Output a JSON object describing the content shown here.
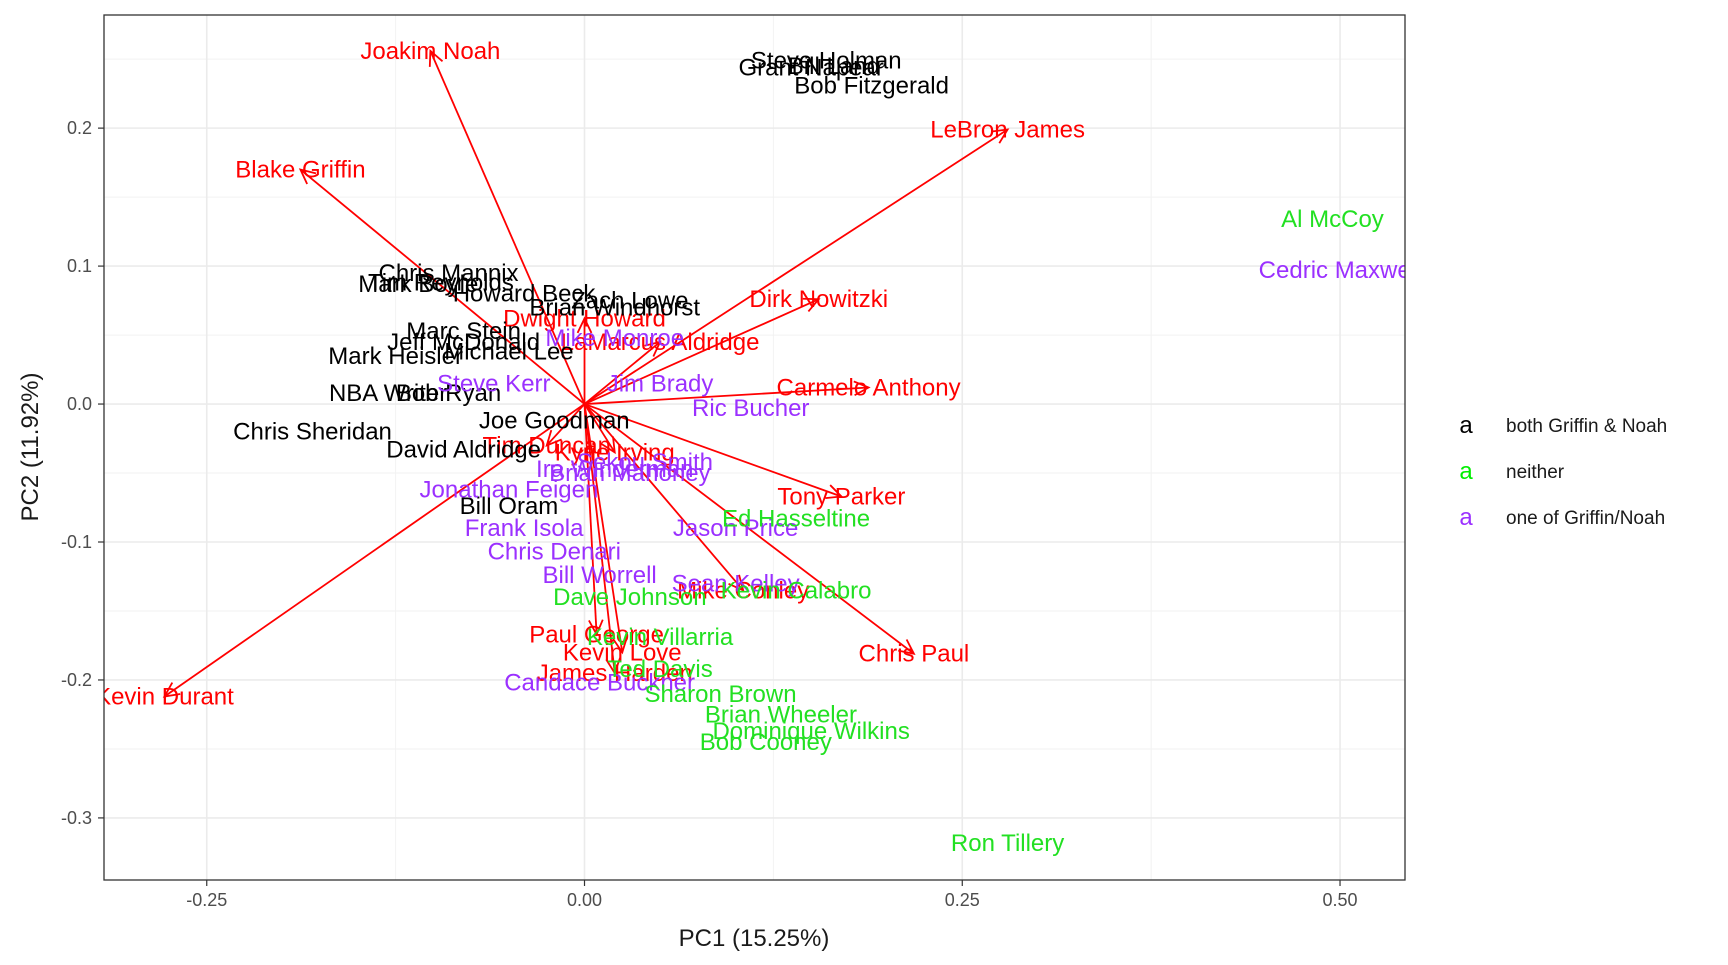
{
  "chart_data": {
    "type": "scatter",
    "subtype": "pca-biplot",
    "title": "",
    "xlabel": "PC1 (15.25%)",
    "ylabel": "PC2 (11.92%)",
    "xlim": [
      -0.318,
      0.543
    ],
    "ylim": [
      -0.345,
      0.282
    ],
    "x_ticks": [
      {
        "value": -0.25,
        "label": "-0.25"
      },
      {
        "value": 0.0,
        "label": "0.00"
      },
      {
        "value": 0.25,
        "label": "0.25"
      },
      {
        "value": 0.5,
        "label": "0.50"
      }
    ],
    "y_ticks": [
      {
        "value": -0.3,
        "label": "-0.3"
      },
      {
        "value": -0.2,
        "label": "-0.2"
      },
      {
        "value": -0.1,
        "label": "-0.1"
      },
      {
        "value": 0.0,
        "label": "0.0"
      },
      {
        "value": 0.1,
        "label": "0.1"
      },
      {
        "value": 0.2,
        "label": "0.2"
      }
    ],
    "grid": true,
    "legend": {
      "position": "right",
      "key_glyph": "a",
      "entries": [
        {
          "label": "both Griffin & Noah",
          "color": "#000000"
        },
        {
          "label": "neither",
          "color": "#00ee00"
        },
        {
          "label": "one of Griffin/Noah",
          "color": "#9b30ff"
        }
      ]
    },
    "colors": {
      "both": "#000000",
      "neither": "#22e022",
      "one": "#9b30ff",
      "arrow": "#ff0000"
    },
    "points": [
      {
        "label": "Steve Holman",
        "x": 0.16,
        "y": 0.249,
        "group": "both"
      },
      {
        "label": "Grant Napear",
        "x": 0.15,
        "y": 0.244,
        "group": "both"
      },
      {
        "label": "Bill Land",
        "x": 0.165,
        "y": 0.245,
        "group": "both"
      },
      {
        "label": "Bob Fitzgerald",
        "x": 0.19,
        "y": 0.231,
        "group": "both"
      },
      {
        "label": "Chris Mannix",
        "x": -0.09,
        "y": 0.095,
        "group": "both"
      },
      {
        "label": "Mark Boyle",
        "x": -0.11,
        "y": 0.087,
        "group": "both"
      },
      {
        "label": "Tim Reynolds",
        "x": -0.095,
        "y": 0.088,
        "group": "both"
      },
      {
        "label": "Howard Beck",
        "x": -0.04,
        "y": 0.08,
        "group": "both"
      },
      {
        "label": "Brian Windhorst",
        "x": 0.02,
        "y": 0.07,
        "group": "both"
      },
      {
        "label": "Zach Lowe",
        "x": 0.03,
        "y": 0.075,
        "group": "both"
      },
      {
        "label": "Marc Stein",
        "x": -0.08,
        "y": 0.053,
        "group": "both"
      },
      {
        "label": "Mark Heisler",
        "x": -0.125,
        "y": 0.035,
        "group": "both"
      },
      {
        "label": "Jeff McDonald",
        "x": -0.08,
        "y": 0.045,
        "group": "both"
      },
      {
        "label": "Michael Lee",
        "x": -0.05,
        "y": 0.038,
        "group": "both"
      },
      {
        "label": "NBA Writer",
        "x": -0.13,
        "y": 0.008,
        "group": "both"
      },
      {
        "label": "Bob Ryan",
        "x": -0.09,
        "y": 0.008,
        "group": "both"
      },
      {
        "label": "Chris Sheridan",
        "x": -0.18,
        "y": -0.02,
        "group": "both"
      },
      {
        "label": "Joe Goodman",
        "x": -0.02,
        "y": -0.012,
        "group": "both"
      },
      {
        "label": "David Aldridge",
        "x": -0.08,
        "y": -0.033,
        "group": "both"
      },
      {
        "label": "Bill Oram",
        "x": -0.05,
        "y": -0.074,
        "group": "both"
      },
      {
        "label": "Mike Monroe",
        "x": 0.02,
        "y": 0.048,
        "group": "one"
      },
      {
        "label": "Steve Kerr",
        "x": -0.06,
        "y": 0.015,
        "group": "one"
      },
      {
        "label": "Jim Brady",
        "x": 0.05,
        "y": 0.015,
        "group": "one"
      },
      {
        "label": "Ric Bucher",
        "x": 0.11,
        "y": -0.003,
        "group": "one"
      },
      {
        "label": "Jonathan Feigen",
        "x": -0.05,
        "y": -0.062,
        "group": "one"
      },
      {
        "label": "Sekou Smith",
        "x": 0.04,
        "y": -0.042,
        "group": "one"
      },
      {
        "label": "Ira Winderman",
        "x": 0.02,
        "y": -0.047,
        "group": "one"
      },
      {
        "label": "Frank Isola",
        "x": -0.04,
        "y": -0.09,
        "group": "one"
      },
      {
        "label": "Brian Mahoney",
        "x": 0.03,
        "y": -0.05,
        "group": "one"
      },
      {
        "label": "Jason Price",
        "x": 0.1,
        "y": -0.09,
        "group": "one"
      },
      {
        "label": "Chris Denari",
        "x": -0.02,
        "y": -0.107,
        "group": "one"
      },
      {
        "label": "Bill Worrell",
        "x": 0.01,
        "y": -0.124,
        "group": "one"
      },
      {
        "label": "Sean Kelley",
        "x": 0.1,
        "y": -0.13,
        "group": "one"
      },
      {
        "label": "Candace Buckner",
        "x": 0.01,
        "y": -0.202,
        "group": "one"
      },
      {
        "label": "Cedric Maxwell",
        "x": 0.5,
        "y": 0.097,
        "group": "one"
      },
      {
        "label": "Al McCoy",
        "x": 0.495,
        "y": 0.134,
        "group": "neither"
      },
      {
        "label": "Ron Tillery",
        "x": 0.28,
        "y": -0.318,
        "group": "neither"
      },
      {
        "label": "Dave Johnson",
        "x": 0.03,
        "y": -0.14,
        "group": "neither"
      },
      {
        "label": "Ed Hasseltine",
        "x": 0.14,
        "y": -0.083,
        "group": "neither"
      },
      {
        "label": "Kevin Calabro",
        "x": 0.14,
        "y": -0.135,
        "group": "neither"
      },
      {
        "label": "Kevin Villarria",
        "x": 0.05,
        "y": -0.169,
        "group": "neither"
      },
      {
        "label": "Ted Davis",
        "x": 0.05,
        "y": -0.192,
        "group": "neither"
      },
      {
        "label": "Sharon Brown",
        "x": 0.09,
        "y": -0.21,
        "group": "neither"
      },
      {
        "label": "Brian Wheeler",
        "x": 0.13,
        "y": -0.225,
        "group": "neither"
      },
      {
        "label": "Dominique Wilkins",
        "x": 0.15,
        "y": -0.237,
        "group": "neither"
      },
      {
        "label": "Bob Cooney",
        "x": 0.12,
        "y": -0.245,
        "group": "neither"
      }
    ],
    "loadings": [
      {
        "label": "Joakim Noah",
        "x": -0.102,
        "y": 0.256
      },
      {
        "label": "Blake Griffin",
        "x": -0.188,
        "y": 0.17
      },
      {
        "label": "LeBron James",
        "x": 0.28,
        "y": 0.199
      },
      {
        "label": "Dirk Nowitzki",
        "x": 0.155,
        "y": 0.076
      },
      {
        "label": "LaMarcus Aldridge",
        "x": 0.05,
        "y": 0.045
      },
      {
        "label": "Carmelo Anthony",
        "x": 0.188,
        "y": 0.012
      },
      {
        "label": "Tony Parker",
        "x": 0.17,
        "y": -0.067
      },
      {
        "label": "Chris Paul",
        "x": 0.218,
        "y": -0.181
      },
      {
        "label": "Mike Conley",
        "x": 0.105,
        "y": -0.135
      },
      {
        "label": "Paul George",
        "x": 0.008,
        "y": -0.167
      },
      {
        "label": "Kevin Love",
        "x": 0.025,
        "y": -0.18
      },
      {
        "label": "James Harden",
        "x": 0.02,
        "y": -0.195
      },
      {
        "label": "Kevin Durant",
        "x": -0.278,
        "y": -0.212
      },
      {
        "label": "Tim Duncan",
        "x": -0.025,
        "y": -0.03
      },
      {
        "label": "Dwight Howard",
        "x": 0.0,
        "y": 0.062
      },
      {
        "label": "Kyrie Irving",
        "x": 0.02,
        "y": -0.035
      }
    ]
  }
}
